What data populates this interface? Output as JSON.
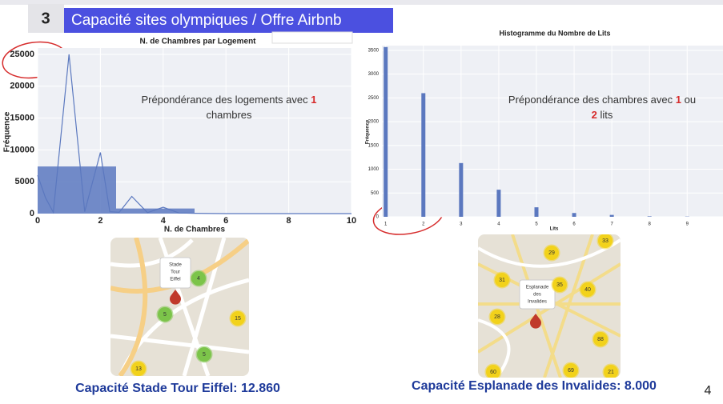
{
  "header": {
    "number": "3",
    "title": "Capacité sites olympiques / Offre Airbnb"
  },
  "chart_data": [
    {
      "type": "histogram",
      "title": "N. de Chambres par Logement",
      "x_label": "N. de Chambres",
      "y_label": "Fréquence",
      "bins": [
        0,
        2.5,
        5,
        7.5,
        10
      ],
      "values": [
        7400,
        800,
        50,
        0
      ],
      "color": "#5b78bf",
      "line": {
        "x": [
          0,
          0.25,
          0.5,
          1,
          1.5,
          2,
          2.3,
          2.6,
          3,
          3.5,
          4,
          4.5,
          5,
          6,
          8,
          10
        ],
        "values": [
          6000,
          2500,
          200,
          25000,
          300,
          9600,
          300,
          200,
          2700,
          150,
          1000,
          100,
          50,
          0,
          0,
          0
        ]
      },
      "xlim": [
        0,
        10
      ],
      "xticks": [
        0,
        2,
        4,
        6,
        8,
        10
      ],
      "ylim": [
        0,
        26000
      ],
      "yticks": [
        0,
        5000,
        10000,
        15000,
        20000,
        25000
      ],
      "grid": true,
      "annotation": [
        "Prépondérance des logements avec",
        "1",
        "chambres"
      ]
    },
    {
      "type": "bar",
      "title": "Histogramme du Nombre de Lits",
      "x_label": "Lits",
      "y_label": "Fréquence",
      "x": [
        1,
        2,
        3,
        4,
        5,
        6,
        7,
        8,
        9
      ],
      "values": [
        3570,
        2600,
        1130,
        570,
        200,
        80,
        40,
        10,
        5
      ],
      "color": "#5b78bf",
      "xlim": [
        0.9,
        9.95
      ],
      "xticks": [
        1,
        2,
        3,
        4,
        5,
        6,
        7,
        8,
        9
      ],
      "ylim": [
        0,
        3600
      ],
      "yticks": [
        0,
        500,
        1000,
        1500,
        2000,
        2500,
        3000,
        3500
      ],
      "grid": true,
      "annotation": [
        "Prépondérance des chambres avec",
        "1",
        "ou",
        "2",
        "lits"
      ]
    }
  ],
  "maps": [
    {
      "popup": [
        "Stade",
        "Tour",
        "Eiffel"
      ],
      "clusters": [
        "4",
        "5",
        "15",
        "13",
        "5"
      ],
      "caption": "Capacité Stade Tour Eiffel: 12.860"
    },
    {
      "popup": [
        "Esplanade",
        "des",
        "Invalides"
      ],
      "clusters": [
        "29",
        "33",
        "31",
        "35",
        "40",
        "28",
        "88",
        "60",
        "69",
        "21"
      ],
      "caption": "Capacité Esplanade des Invalides: 8.000"
    }
  ],
  "page_number": "4"
}
